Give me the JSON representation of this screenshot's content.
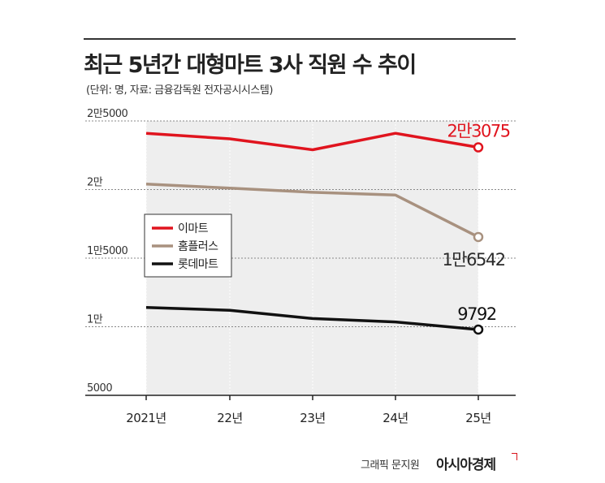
{
  "title": "최근 5년간 대형마트 3사 직원 수 추이",
  "subtitle": "(단위: 명, 자료: 금융감독원 전자공시시스템)",
  "credit": "그래픽 문지원",
  "brand": "아시아경제",
  "chart_data": {
    "type": "line",
    "categories": [
      "2021년",
      "22년",
      "23년",
      "24년",
      "25년"
    ],
    "ylim": [
      5000,
      25000
    ],
    "yticks": [
      {
        "value": 25000,
        "label": "2만5000"
      },
      {
        "value": 20000,
        "label": "2만"
      },
      {
        "value": 15000,
        "label": "1만5000"
      },
      {
        "value": 10000,
        "label": "1만"
      },
      {
        "value": 5000,
        "label": "5000"
      }
    ],
    "grid": true,
    "legend_position": "left-middle",
    "series": [
      {
        "name": "이마트",
        "color": "#e0141e",
        "values": [
          24100,
          23700,
          22900,
          24100,
          23075
        ],
        "end_label": "2만3075"
      },
      {
        "name": "홈플러스",
        "color": "#a8917f",
        "values": [
          20400,
          20100,
          19800,
          19600,
          16542
        ],
        "end_label": "1만6542"
      },
      {
        "name": "롯데마트",
        "color": "#111111",
        "values": [
          11400,
          11200,
          10600,
          10350,
          9792
        ],
        "end_label": "9792"
      }
    ]
  }
}
